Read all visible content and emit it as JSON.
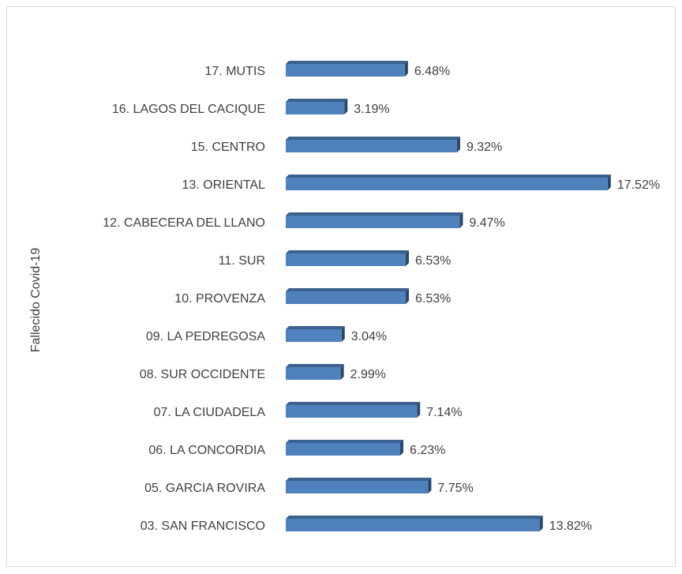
{
  "chart_data": {
    "type": "bar",
    "orientation": "horizontal",
    "ylabel": "Fallecido Covid-19",
    "categories": [
      "17. MUTIS",
      "16. LAGOS DEL CACIQUE",
      "15. CENTRO",
      "13. ORIENTAL",
      "12. CABECERA DEL LLANO",
      "11. SUR",
      "10. PROVENZA",
      "09. LA PEDREGOSA",
      "08. SUR OCCIDENTE",
      "07. LA CIUDADELA",
      "06. LA CONCORDIA",
      "05. GARCIA ROVIRA",
      "03. SAN FRANCISCO"
    ],
    "values": [
      6.48,
      3.19,
      9.32,
      17.52,
      9.47,
      6.53,
      6.53,
      3.04,
      2.99,
      7.14,
      6.23,
      7.75,
      13.82
    ],
    "value_labels": [
      "6.48%",
      "3.19%",
      "9.32%",
      "17.52%",
      "9.47%",
      "6.53%",
      "6.53%",
      "3.04%",
      "2.99%",
      "7.14%",
      "6.23%",
      "7.75%",
      "13.82%"
    ],
    "color": "#4f81bd",
    "xlim": [
      0,
      18
    ]
  }
}
